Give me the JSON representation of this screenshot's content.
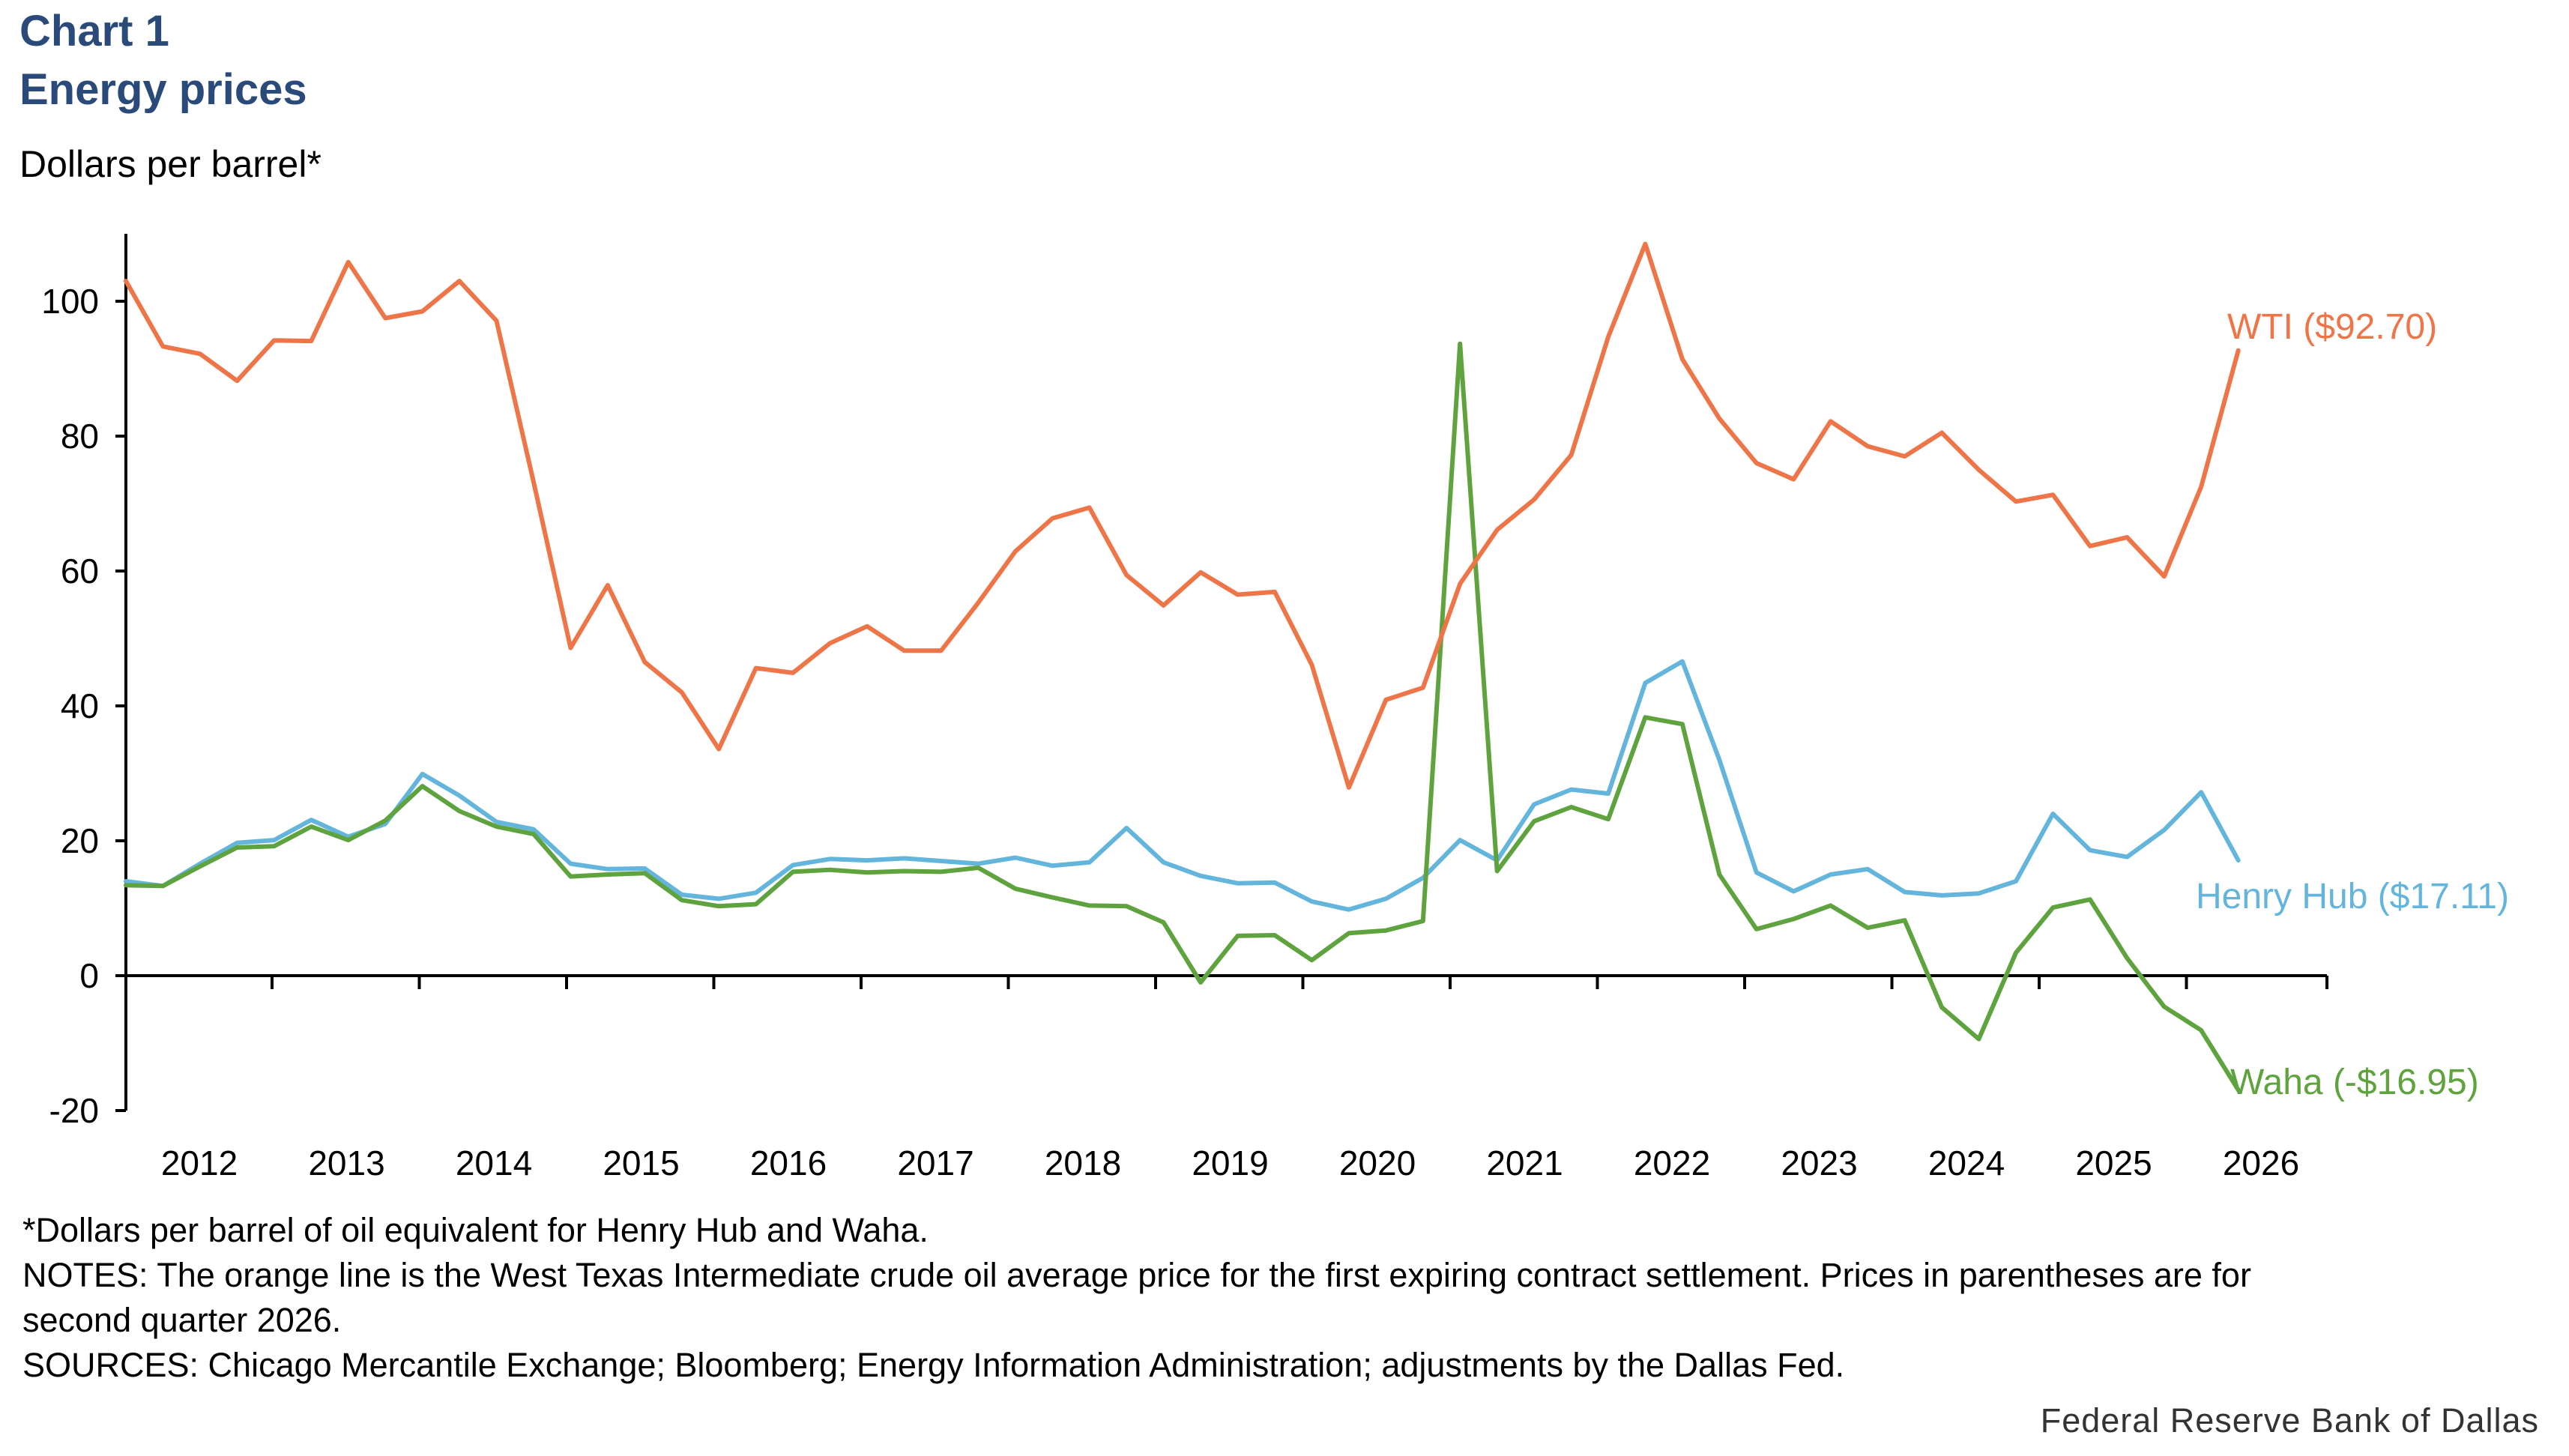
{
  "header": {
    "chart_number": "Chart 1",
    "title": "Energy prices",
    "y_unit": "Dollars per barrel*"
  },
  "notes": {
    "footnote": "*Dollars per barrel of oil equivalent for Henry Hub and Waha.",
    "notes_line1": "NOTES: The orange line is the West Texas Intermediate crude oil average price for the first expiring contract settlement. Prices in parentheses are for",
    "notes_line2": "second quarter 2026.",
    "sources": "SOURCES: Chicago Mercantile Exchange; Bloomberg; Energy Information Administration; adjustments by the Dallas Fed."
  },
  "credit": "Federal Reserve Bank of Dallas",
  "colors": {
    "wti": "#ee7547",
    "henry_hub": "#64b5dc",
    "waha": "#5ea33e",
    "axis": "#000000"
  },
  "chart_data": {
    "type": "line",
    "frequency": "quarterly",
    "x_start": "2011 Q4",
    "x_end": "2026 Q2",
    "ylim": [
      -20,
      110
    ],
    "yticks": [
      -20,
      0,
      20,
      40,
      60,
      80,
      100
    ],
    "x_tick_labels": [
      "2012",
      "2013",
      "2014",
      "2015",
      "2016",
      "2017",
      "2018",
      "2019",
      "2020",
      "2021",
      "2022",
      "2023",
      "2024",
      "2025",
      "2026"
    ],
    "grid": false,
    "legend": "end-of-line labels",
    "series": [
      {
        "name": "WTI ($92.70)",
        "color_key": "wti",
        "values": [
          103,
          93.3,
          92.2,
          88.2,
          94.2,
          94.1,
          105.8,
          97.5,
          98.5,
          103,
          97.1,
          73.2,
          48.6,
          57.9,
          46.5,
          42.0,
          33.6,
          45.6,
          44.9,
          49.3,
          51.8,
          48.2,
          48.2,
          55.3,
          62.9,
          67.8,
          69.4,
          59.4,
          54.9,
          59.8,
          56.5,
          56.9,
          46.1,
          27.9,
          40.9,
          42.7,
          58.1,
          66.1,
          70.6,
          77.2,
          94.7,
          108.5,
          91.4,
          82.6,
          76.0,
          73.6,
          82.2,
          78.5,
          77.0,
          80.5,
          75.0,
          70.3,
          71.3,
          63.7,
          65.0,
          59.2,
          72.5,
          92.7
        ]
      },
      {
        "name": "Henry Hub ($17.11)",
        "color_key": "henry_hub",
        "values": [
          14.0,
          13.3,
          16.6,
          19.7,
          20.1,
          23.1,
          20.6,
          22.5,
          29.9,
          26.7,
          22.8,
          21.7,
          16.6,
          15.8,
          15.9,
          12.0,
          11.4,
          12.3,
          16.4,
          17.3,
          17.1,
          17.4,
          17.0,
          16.6,
          17.5,
          16.3,
          16.8,
          21.9,
          16.8,
          14.8,
          13.7,
          13.8,
          11.0,
          9.8,
          11.4,
          14.5,
          20.1,
          17.1,
          25.4,
          27.6,
          27.0,
          43.4,
          46.6,
          32.0,
          15.3,
          12.5,
          15.0,
          15.8,
          12.4,
          11.9,
          12.2,
          14.0,
          24.0,
          18.6,
          17.6,
          21.6,
          27.2,
          17.11
        ]
      },
      {
        "name": "Waha (-$16.95)",
        "color_key": "waha",
        "values": [
          13.4,
          13.3,
          16.2,
          19.0,
          19.2,
          22.1,
          20.1,
          23.0,
          28.1,
          24.4,
          22.1,
          21.0,
          14.7,
          15.0,
          15.2,
          11.2,
          10.3,
          10.6,
          15.4,
          15.7,
          15.3,
          15.5,
          15.4,
          16.0,
          12.9,
          11.6,
          10.4,
          10.3,
          7.9,
          -1.0,
          5.9,
          6.0,
          2.3,
          6.3,
          6.7,
          8.1,
          93.7,
          15.5,
          22.9,
          25.0,
          23.2,
          38.3,
          37.3,
          15.0,
          6.9,
          8.4,
          10.4,
          7.1,
          8.2,
          -4.7,
          -9.4,
          3.4,
          10.1,
          11.3,
          2.6,
          -4.6,
          -8.1,
          -16.95
        ]
      }
    ]
  }
}
